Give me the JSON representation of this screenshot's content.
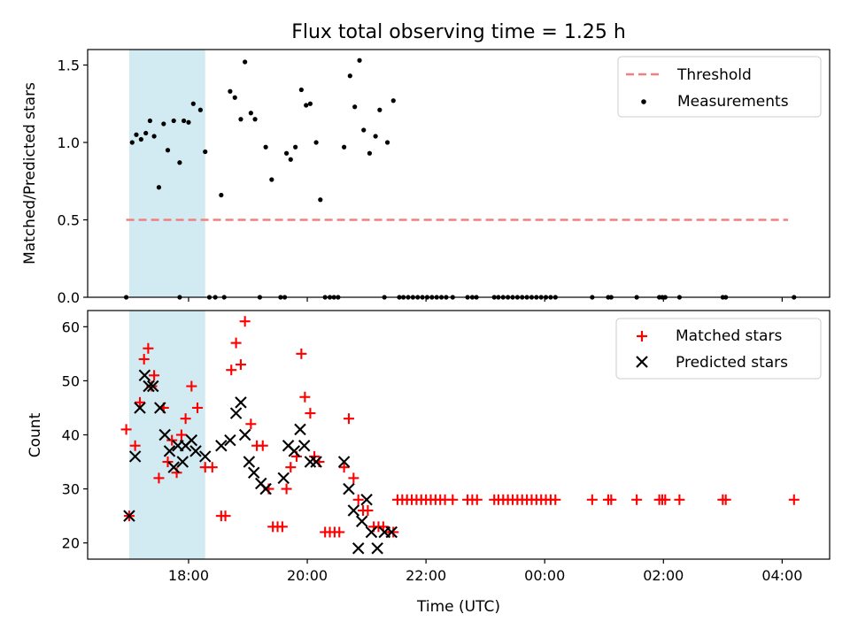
{
  "figure": {
    "title": "Flux total observing time = 1.25 h"
  },
  "colors": {
    "threshold": "#f08080",
    "measurement": "#000000",
    "matched": "#ff0000",
    "predicted": "#000000",
    "shade": "#add8e6"
  },
  "chart_data": [
    {
      "type": "scatter",
      "title": "Flux total observing time = 1.25 h",
      "xlabel": "",
      "ylabel": "Matched/Predicted stars",
      "xlim": [
        16.3,
        28.8
      ],
      "ylim": [
        0,
        1.6
      ],
      "yticks": [
        0.0,
        0.5,
        1.0,
        1.5
      ],
      "ytick_labels": [
        "0.0",
        "0.5",
        "1.0",
        "1.5"
      ],
      "shaded_span": [
        17.0,
        18.28
      ],
      "legend": {
        "position": "top-right",
        "entries": [
          "Threshold",
          "Measurements"
        ]
      },
      "series": [
        {
          "name": "Threshold",
          "style": "dashed-line",
          "x": [
            16.95,
            28.1
          ],
          "y": [
            0.5,
            0.5
          ]
        },
        {
          "name": "Measurements",
          "style": "dot",
          "points": [
            [
              17.05,
              1.0
            ],
            [
              17.12,
              1.05
            ],
            [
              17.2,
              1.02
            ],
            [
              17.28,
              1.06
            ],
            [
              17.35,
              1.14
            ],
            [
              17.42,
              1.04
            ],
            [
              17.5,
              0.71
            ],
            [
              17.58,
              1.12
            ],
            [
              17.65,
              0.95
            ],
            [
              17.75,
              1.14
            ],
            [
              17.85,
              0.87
            ],
            [
              17.92,
              1.14
            ],
            [
              18.0,
              1.13
            ],
            [
              18.08,
              1.25
            ],
            [
              18.2,
              1.21
            ],
            [
              18.28,
              0.94
            ],
            [
              18.55,
              0.66
            ],
            [
              18.7,
              1.33
            ],
            [
              18.78,
              1.29
            ],
            [
              18.88,
              1.15
            ],
            [
              18.95,
              1.52
            ],
            [
              19.05,
              1.19
            ],
            [
              19.12,
              1.15
            ],
            [
              19.3,
              0.97
            ],
            [
              19.4,
              0.76
            ],
            [
              19.65,
              0.93
            ],
            [
              19.72,
              0.89
            ],
            [
              19.8,
              0.97
            ],
            [
              19.9,
              1.34
            ],
            [
              19.98,
              1.24
            ],
            [
              20.05,
              1.25
            ],
            [
              20.15,
              1.0
            ],
            [
              20.22,
              0.63
            ],
            [
              20.62,
              0.97
            ],
            [
              20.72,
              1.43
            ],
            [
              20.8,
              1.23
            ],
            [
              20.88,
              1.53
            ],
            [
              20.95,
              1.08
            ],
            [
              21.05,
              0.93
            ],
            [
              21.15,
              1.04
            ],
            [
              21.22,
              1.21
            ],
            [
              21.35,
              1.0
            ],
            [
              21.45,
              1.27
            ],
            [
              16.95,
              0
            ],
            [
              17.85,
              0
            ],
            [
              18.35,
              0
            ],
            [
              18.45,
              0
            ],
            [
              18.6,
              0
            ],
            [
              19.2,
              0
            ],
            [
              19.55,
              0
            ],
            [
              19.62,
              0
            ],
            [
              20.3,
              0
            ],
            [
              20.38,
              0
            ],
            [
              20.45,
              0
            ],
            [
              20.52,
              0
            ],
            [
              21.3,
              0
            ],
            [
              21.55,
              0
            ],
            [
              21.62,
              0
            ],
            [
              21.7,
              0
            ],
            [
              21.78,
              0
            ],
            [
              21.86,
              0
            ],
            [
              21.94,
              0
            ],
            [
              22.02,
              0
            ],
            [
              22.1,
              0
            ],
            [
              22.18,
              0
            ],
            [
              22.26,
              0
            ],
            [
              22.34,
              0
            ],
            [
              22.45,
              0
            ],
            [
              22.7,
              0
            ],
            [
              22.78,
              0
            ],
            [
              22.85,
              0
            ],
            [
              23.15,
              0
            ],
            [
              23.22,
              0
            ],
            [
              23.3,
              0
            ],
            [
              23.38,
              0
            ],
            [
              23.46,
              0
            ],
            [
              23.54,
              0
            ],
            [
              23.62,
              0
            ],
            [
              23.7,
              0
            ],
            [
              23.78,
              0
            ],
            [
              23.86,
              0
            ],
            [
              23.94,
              0
            ],
            [
              24.02,
              0
            ],
            [
              24.1,
              0
            ],
            [
              24.18,
              0
            ],
            [
              24.8,
              0
            ],
            [
              25.07,
              0
            ],
            [
              25.12,
              0
            ],
            [
              25.55,
              0
            ],
            [
              25.93,
              0
            ],
            [
              25.98,
              0
            ],
            [
              26.03,
              0
            ],
            [
              26.27,
              0
            ],
            [
              27.0,
              0
            ],
            [
              27.05,
              0
            ],
            [
              28.2,
              0
            ]
          ]
        }
      ]
    },
    {
      "type": "scatter",
      "title": "",
      "xlabel": "Time (UTC)",
      "ylabel": "Count",
      "xlim": [
        16.3,
        28.8
      ],
      "ylim": [
        17,
        63
      ],
      "yticks": [
        20,
        30,
        40,
        50,
        60
      ],
      "ytick_labels": [
        "20",
        "30",
        "40",
        "50",
        "60"
      ],
      "xticks": [
        18,
        20,
        22,
        24,
        26,
        28
      ],
      "xtick_labels": [
        "18:00",
        "20:00",
        "22:00",
        "00:00",
        "02:00",
        "04:00"
      ],
      "shaded_span": [
        17.0,
        18.28
      ],
      "legend": {
        "position": "top-right",
        "entries": [
          "Matched stars",
          "Predicted stars"
        ]
      },
      "series": [
        {
          "name": "Matched stars",
          "style": "plus",
          "points": [
            [
              16.95,
              41
            ],
            [
              17.0,
              25
            ],
            [
              17.1,
              38
            ],
            [
              17.18,
              46
            ],
            [
              17.25,
              54
            ],
            [
              17.32,
              56
            ],
            [
              17.38,
              49
            ],
            [
              17.42,
              51
            ],
            [
              17.5,
              32
            ],
            [
              17.58,
              45
            ],
            [
              17.65,
              35
            ],
            [
              17.72,
              39
            ],
            [
              17.8,
              33
            ],
            [
              17.88,
              40
            ],
            [
              17.95,
              43
            ],
            [
              18.05,
              49
            ],
            [
              18.15,
              45
            ],
            [
              18.28,
              34
            ],
            [
              18.4,
              34
            ],
            [
              18.55,
              25
            ],
            [
              18.62,
              25
            ],
            [
              18.72,
              52
            ],
            [
              18.8,
              57
            ],
            [
              18.88,
              53
            ],
            [
              18.95,
              61
            ],
            [
              19.05,
              42
            ],
            [
              19.15,
              38
            ],
            [
              19.25,
              38
            ],
            [
              19.35,
              30
            ],
            [
              19.42,
              23
            ],
            [
              19.5,
              23
            ],
            [
              19.58,
              23
            ],
            [
              19.65,
              30
            ],
            [
              19.72,
              34
            ],
            [
              19.82,
              36
            ],
            [
              19.9,
              55
            ],
            [
              19.96,
              47
            ],
            [
              20.05,
              44
            ],
            [
              20.12,
              36
            ],
            [
              20.2,
              35
            ],
            [
              20.3,
              22
            ],
            [
              20.38,
              22
            ],
            [
              20.46,
              22
            ],
            [
              20.54,
              22
            ],
            [
              20.62,
              34
            ],
            [
              20.7,
              43
            ],
            [
              20.78,
              32
            ],
            [
              20.86,
              28
            ],
            [
              20.94,
              26
            ],
            [
              21.02,
              26
            ],
            [
              21.12,
              23
            ],
            [
              21.2,
              23
            ],
            [
              21.28,
              23
            ],
            [
              21.38,
              22
            ],
            [
              21.45,
              22
            ],
            [
              21.52,
              28
            ],
            [
              21.6,
              28
            ],
            [
              21.68,
              28
            ],
            [
              21.76,
              28
            ],
            [
              21.84,
              28
            ],
            [
              21.92,
              28
            ],
            [
              22.0,
              28
            ],
            [
              22.08,
              28
            ],
            [
              22.16,
              28
            ],
            [
              22.24,
              28
            ],
            [
              22.32,
              28
            ],
            [
              22.45,
              28
            ],
            [
              22.7,
              28
            ],
            [
              22.78,
              28
            ],
            [
              22.86,
              28
            ],
            [
              23.15,
              28
            ],
            [
              23.22,
              28
            ],
            [
              23.3,
              28
            ],
            [
              23.38,
              28
            ],
            [
              23.46,
              28
            ],
            [
              23.54,
              28
            ],
            [
              23.62,
              28
            ],
            [
              23.7,
              28
            ],
            [
              23.78,
              28
            ],
            [
              23.86,
              28
            ],
            [
              23.94,
              28
            ],
            [
              24.02,
              28
            ],
            [
              24.1,
              28
            ],
            [
              24.18,
              28
            ],
            [
              24.8,
              28
            ],
            [
              25.07,
              28
            ],
            [
              25.12,
              28
            ],
            [
              25.55,
              28
            ],
            [
              25.93,
              28
            ],
            [
              25.98,
              28
            ],
            [
              26.03,
              28
            ],
            [
              26.27,
              28
            ],
            [
              27.0,
              28
            ],
            [
              27.05,
              28
            ],
            [
              28.2,
              28
            ]
          ]
        },
        {
          "name": "Predicted stars",
          "style": "x",
          "points": [
            [
              17.0,
              25
            ],
            [
              17.1,
              36
            ],
            [
              17.18,
              45
            ],
            [
              17.26,
              51
            ],
            [
              17.33,
              49
            ],
            [
              17.4,
              49
            ],
            [
              17.52,
              45
            ],
            [
              17.6,
              40
            ],
            [
              17.68,
              37
            ],
            [
              17.75,
              34
            ],
            [
              17.82,
              38
            ],
            [
              17.9,
              35
            ],
            [
              17.95,
              38
            ],
            [
              18.05,
              39
            ],
            [
              18.12,
              37
            ],
            [
              18.28,
              36
            ],
            [
              18.55,
              38
            ],
            [
              18.7,
              39
            ],
            [
              18.8,
              44
            ],
            [
              18.88,
              46
            ],
            [
              18.95,
              40
            ],
            [
              19.02,
              35
            ],
            [
              19.1,
              33
            ],
            [
              19.22,
              31
            ],
            [
              19.3,
              30
            ],
            [
              19.6,
              32
            ],
            [
              19.68,
              38
            ],
            [
              19.78,
              37
            ],
            [
              19.88,
              41
            ],
            [
              19.95,
              38
            ],
            [
              20.05,
              35
            ],
            [
              20.15,
              35
            ],
            [
              20.62,
              35
            ],
            [
              20.7,
              30
            ],
            [
              20.78,
              26
            ],
            [
              20.86,
              19
            ],
            [
              20.92,
              24
            ],
            [
              21.0,
              28
            ],
            [
              21.08,
              22
            ],
            [
              21.18,
              19
            ],
            [
              21.3,
              22
            ],
            [
              21.42,
              22
            ]
          ]
        }
      ]
    }
  ]
}
